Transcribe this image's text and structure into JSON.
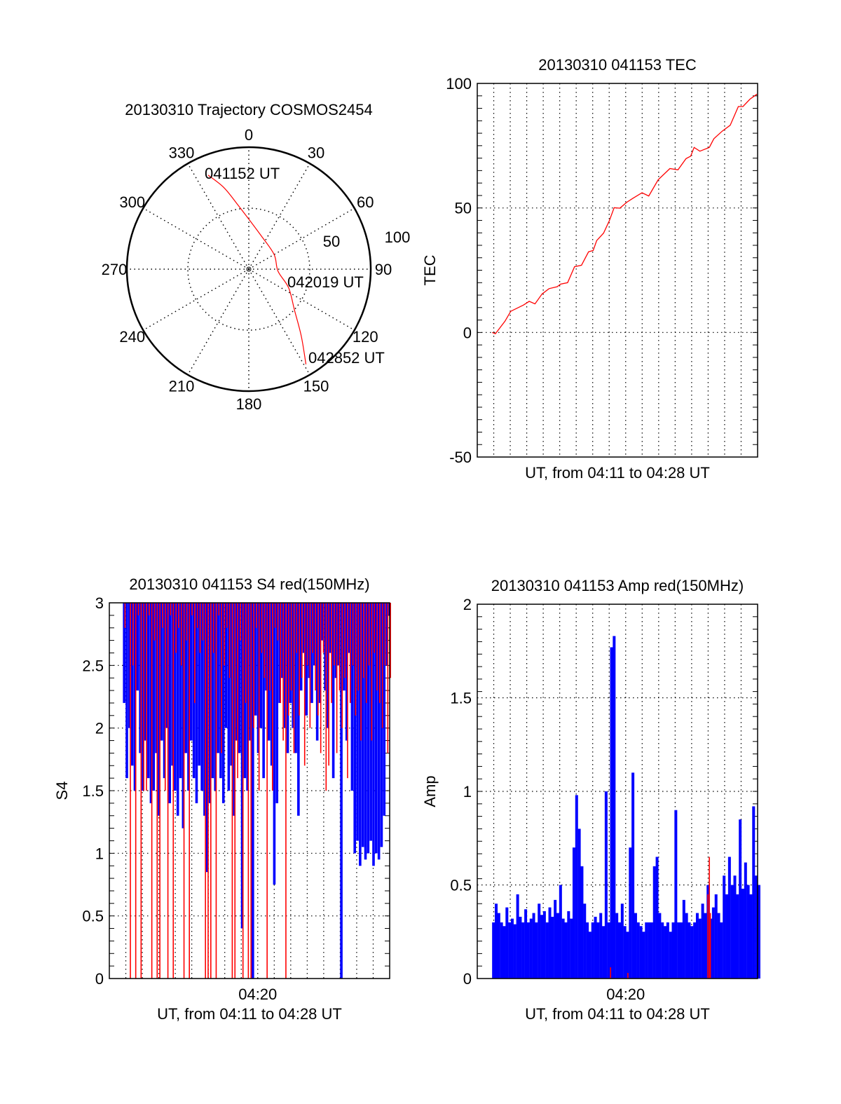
{
  "chart_data": [
    {
      "type": "polar",
      "title": "20130310 Trajectory COSMOS2454",
      "angle_labels": [
        "0",
        "30",
        "60",
        "90",
        "120",
        "150",
        "180",
        "210",
        "240",
        "270",
        "300",
        "330"
      ],
      "radial_range": [
        0,
        100
      ],
      "radial_labels": [
        "50",
        "100"
      ],
      "trajectory_color": "#ff0000",
      "trajectory": [
        [
          336.6,
          84
        ],
        [
          343,
          70
        ],
        [
          350.6,
          53
        ],
        [
          21,
          29
        ],
        [
          60,
          24
        ],
        [
          94,
          24
        ],
        [
          115,
          36
        ],
        [
          132,
          50.5
        ],
        [
          142,
          70
        ],
        [
          149,
          91
        ]
      ],
      "time_labels": {
        "start": "041152 UT",
        "middle": "042019 UT",
        "end": "042852 UT"
      }
    },
    {
      "type": "line",
      "title": "20130310 041153 TEC",
      "xlabel": "UT, from 04:11 to 04:28 UT",
      "ylabel": "TEC",
      "xlim_minutes_after_0411": [
        0,
        17
      ],
      "ylim": [
        -50,
        100
      ],
      "yticks": [
        "100",
        "50",
        "0",
        "-50"
      ],
      "ytick_values": [
        100,
        50,
        0,
        -50
      ],
      "grid": true,
      "series": [
        {
          "name": "TEC",
          "color": "#ff0000",
          "x": [
            0.9,
            1.1,
            1.68,
            2.03,
            2.8,
            3.15,
            3.5,
            3.93,
            4.35,
            4.85,
            5.05,
            5.48,
            5.9,
            6.32,
            6.75,
            7.03,
            7.24,
            7.66,
            8.01,
            8.3,
            8.65,
            9.07,
            9.42,
            9.99,
            10.4,
            10.97,
            11.68,
            12.17,
            12.66,
            12.94,
            13.15,
            13.5,
            14.07,
            14.35,
            14.85,
            15.34,
            15.83,
            16.11,
            16.54,
            16.96
          ],
          "y": [
            0,
            -0.5,
            4.5,
            8.5,
            11,
            12.5,
            11.5,
            15.5,
            17.6,
            18.4,
            19.4,
            20,
            26.4,
            27,
            32.4,
            32.9,
            36.9,
            39.9,
            44.9,
            50.1,
            49.9,
            52.3,
            53.8,
            56.1,
            54.8,
            61.3,
            65.8,
            65.3,
            69.8,
            70.8,
            74.3,
            72.8,
            74.3,
            77.8,
            80.8,
            83.2,
            90.7,
            90.7,
            93.7,
            95.7
          ]
        }
      ]
    },
    {
      "type": "line",
      "title": "20130310 041153 S4 red(150MHz)",
      "xlabel": "UT, from 04:11 to 04:28 UT",
      "xtick_label": "04:20",
      "ylabel": "S4",
      "xlim_minutes_after_0411": [
        0,
        17
      ],
      "ylim": [
        0,
        3
      ],
      "yticks": [
        "0",
        "0.5",
        "1",
        "1.5",
        "2",
        "2.5",
        "3"
      ],
      "ytick_values": [
        0,
        0.5,
        1,
        1.5,
        2,
        2.5,
        3
      ],
      "grid": true,
      "sample_start_minute": 0.9,
      "sample_step_minute": 0.1626,
      "series": [
        {
          "name": "blue",
          "color": "#0000ff",
          "values": [
            2.2,
            1.6,
            2.0,
            1.7,
            1.5,
            2.3,
            1.8,
            1.5,
            1.9,
            1.6,
            1.4,
            1.5,
            1.8,
            1.3,
            1.9,
            1.6,
            2.0,
            1.4,
            1.7,
            1.5,
            1.3,
            1.6,
            1.2,
            1.8,
            1.5,
            1.9,
            1.6,
            1.4,
            1.7,
            1.5,
            1.3,
            0.85,
            1.4,
            1.6,
            1.5,
            1.8,
            1.6,
            1.4,
            2.0,
            1.5,
            1.7,
            1.3,
            1.9,
            1.8,
            0.4,
            1.6,
            1.5,
            1.9,
            0.0,
            2.1,
            1.8,
            2.0,
            1.6,
            2.3,
            1.9,
            1.7,
            0.75,
            1.4,
            2.2,
            2.4,
            2.0,
            1.8,
            2.2,
            2.0,
            1.8,
            1.3,
            2.3,
            2.6,
            2.1,
            2.4,
            2.2,
            2.5,
            1.9,
            2.2,
            2.7,
            2.3,
            2.0,
            2.6,
            1.6,
            2.4,
            2.5,
            0.0,
            2.3,
            1.9,
            2.6,
            1.5,
            1.0,
            1.1,
            0.9,
            1.05,
            0.95,
            1.0,
            1.1,
            0.9,
            1.0,
            0.95,
            1.05,
            1.3,
            2.5,
            2.9
          ]
        },
        {
          "name": "red",
          "color": "#ff0000",
          "values": [
            2.8,
            3,
            0,
            2.5,
            0,
            2.9,
            0,
            1.5,
            1.5,
            2.9,
            0,
            2.7,
            0,
            0,
            2.8,
            1.5,
            0,
            2.9,
            0,
            2.6,
            2.8,
            2.5,
            0,
            2.7,
            0,
            2.9,
            2.2,
            2.8,
            2.6,
            2.7,
            0,
            0,
            0,
            2.6,
            0,
            2.9,
            1.8,
            2.5,
            2.8,
            2.4,
            0,
            0,
            1.6,
            2.7,
            0,
            2.2,
            0,
            0,
            2.0,
            2.8,
            1.5,
            2.6,
            2.4,
            0,
            2.3,
            1.5,
            2.8,
            2.7,
            2.2,
            1.9,
            0,
            2.1,
            2.3,
            1.8,
            2.6,
            2.1,
            2.4,
            1.7,
            2.5,
            2.0,
            2.6,
            2.3,
            2.1,
            1.8,
            2.6,
            1.5,
            1.7,
            2.2,
            2.5,
            1.8,
            2.3,
            2.0,
            2.4,
            1.6,
            2.2,
            2.5,
            2.1,
            2.3,
            1.9,
            2.4,
            2.2,
            2.5,
            1.9,
            2.6,
            2.3,
            2.2,
            2.0,
            2.5,
            1.8,
            2.4
          ]
        }
      ]
    },
    {
      "type": "bar",
      "title": "20130310 041153 Amp red(150MHz)",
      "xlabel": "UT, from 04:11 to 04:28 UT",
      "xtick_label": "04:20",
      "ylabel": "Amp",
      "xlim_minutes_after_0411": [
        0,
        17
      ],
      "ylim": [
        0,
        2
      ],
      "yticks": [
        "0",
        "0.5",
        "1",
        "1.5",
        "2"
      ],
      "ytick_values": [
        0,
        0.5,
        1,
        1.5,
        2
      ],
      "grid": true,
      "sample_start_minute": 0.9,
      "sample_step_minute": 0.1626,
      "series": [
        {
          "name": "blue",
          "color": "#0000ff",
          "values": [
            0.3,
            0.4,
            0.35,
            0.3,
            0.28,
            0.38,
            0.3,
            0.32,
            0.29,
            0.45,
            0.33,
            0.3,
            0.37,
            0.3,
            0.32,
            0.35,
            0.3,
            0.4,
            0.34,
            0.36,
            0.3,
            0.38,
            0.33,
            0.42,
            0.35,
            0.5,
            0.32,
            0.3,
            0.36,
            0.32,
            0.7,
            0.98,
            0.8,
            0.6,
            0.4,
            0.3,
            0.25,
            0.3,
            0.33,
            0.3,
            0.35,
            0.28,
            1.0,
            0.3,
            1.77,
            1.83,
            0.35,
            0.3,
            0.4,
            0.28,
            0.25,
            0.7,
            1.1,
            0.35,
            0.3,
            0.28,
            0.25,
            0.3,
            0.3,
            0.3,
            0.6,
            0.65,
            0.35,
            0.3,
            0.28,
            0.3,
            0.25,
            0.3,
            0.9,
            0.3,
            0.3,
            0.42,
            0.35,
            0.3,
            0.28,
            0.3,
            0.35,
            0.32,
            0.4,
            0.35,
            0.5,
            0.32,
            0.38,
            0.45,
            0.35,
            0.3,
            0.55,
            0.45,
            0.65,
            0.5,
            0.55,
            0.45,
            0.85,
            0.48,
            0.62,
            0.5,
            0.45,
            0.92,
            0.55,
            0.5
          ]
        },
        {
          "name": "red",
          "color": "#ff0000",
          "points": [
            [
              8.05,
              0.06
            ],
            [
              9.1,
              0.03
            ],
            [
              13.95,
              0.45
            ],
            [
              14.04,
              0.65
            ],
            [
              14.1,
              0.35
            ]
          ]
        }
      ]
    }
  ]
}
